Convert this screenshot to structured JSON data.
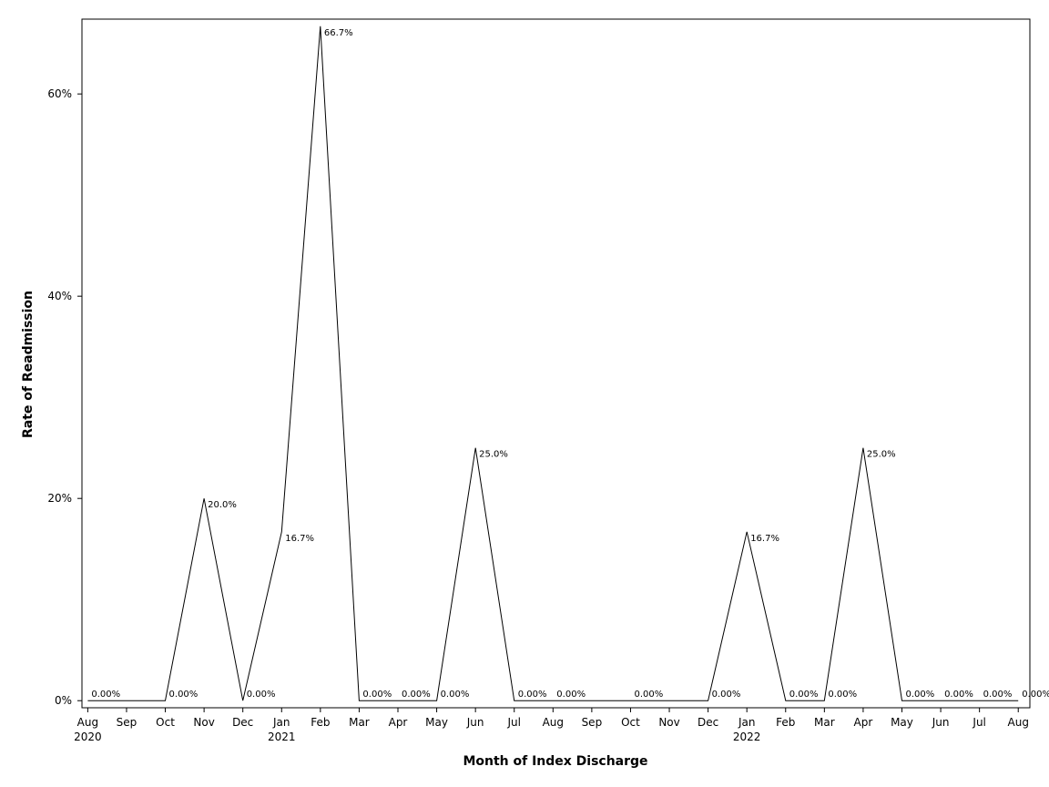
{
  "chart_data": {
    "type": "line",
    "xlabel": "Month of Index Discharge",
    "ylabel": "Rate of Readmission",
    "x_tick_labels": [
      "Aug",
      "Sep",
      "Oct",
      "Nov",
      "Dec",
      "Jan",
      "Feb",
      "Mar",
      "Apr",
      "May",
      "Jun",
      "Jul",
      "Aug",
      "Sep",
      "Oct",
      "Nov",
      "Dec",
      "Jan",
      "Feb",
      "Mar",
      "Apr",
      "May",
      "Jun",
      "Jul",
      "Aug"
    ],
    "year_labels": [
      {
        "tick_index": 0,
        "text": "2020"
      },
      {
        "tick_index": 5,
        "text": "2021"
      },
      {
        "tick_index": 17,
        "text": "2022"
      }
    ],
    "y_ticks": [
      0,
      20,
      40,
      60
    ],
    "y_tick_labels": [
      "0%",
      "20%",
      "40%",
      "60%"
    ],
    "ylim": [
      -0.7,
      67.4
    ],
    "xlim": [
      -0.15,
      24.3
    ],
    "grid": false,
    "legend": "none",
    "points": [
      {
        "x": 0,
        "y": 0,
        "label": "0.00%"
      },
      {
        "x": 2,
        "y": 0,
        "label": "0.00%"
      },
      {
        "x": 3,
        "y": 20.0,
        "label": "20.0%"
      },
      {
        "x": 4,
        "y": 0,
        "label": "0.00%"
      },
      {
        "x": 5,
        "y": 16.7,
        "label": "16.7%"
      },
      {
        "x": 6,
        "y": 66.7,
        "label": "66.7%"
      },
      {
        "x": 7,
        "y": 0,
        "label": "0.00%"
      },
      {
        "x": 8,
        "y": 0,
        "label": "0.00%"
      },
      {
        "x": 9,
        "y": 0,
        "label": "0.00%"
      },
      {
        "x": 10,
        "y": 25.0,
        "label": "25.0%"
      },
      {
        "x": 11,
        "y": 0,
        "label": "0.00%"
      },
      {
        "x": 12,
        "y": 0,
        "label": "0.00%"
      },
      {
        "x": 14,
        "y": 0,
        "label": "0.00%"
      },
      {
        "x": 16,
        "y": 0,
        "label": "0.00%"
      },
      {
        "x": 17,
        "y": 16.7,
        "label": "16.7%"
      },
      {
        "x": 18,
        "y": 0,
        "label": "0.00%"
      },
      {
        "x": 19,
        "y": 0,
        "label": "0.00%"
      },
      {
        "x": 20,
        "y": 25.0,
        "label": "25.0%"
      },
      {
        "x": 21,
        "y": 0,
        "label": "0.00%"
      },
      {
        "x": 22,
        "y": 0,
        "label": "0.00%"
      },
      {
        "x": 23,
        "y": 0,
        "label": "0.00%"
      },
      {
        "x": 24,
        "y": 0,
        "label": "0.00%"
      }
    ],
    "line_color": "#000000"
  }
}
